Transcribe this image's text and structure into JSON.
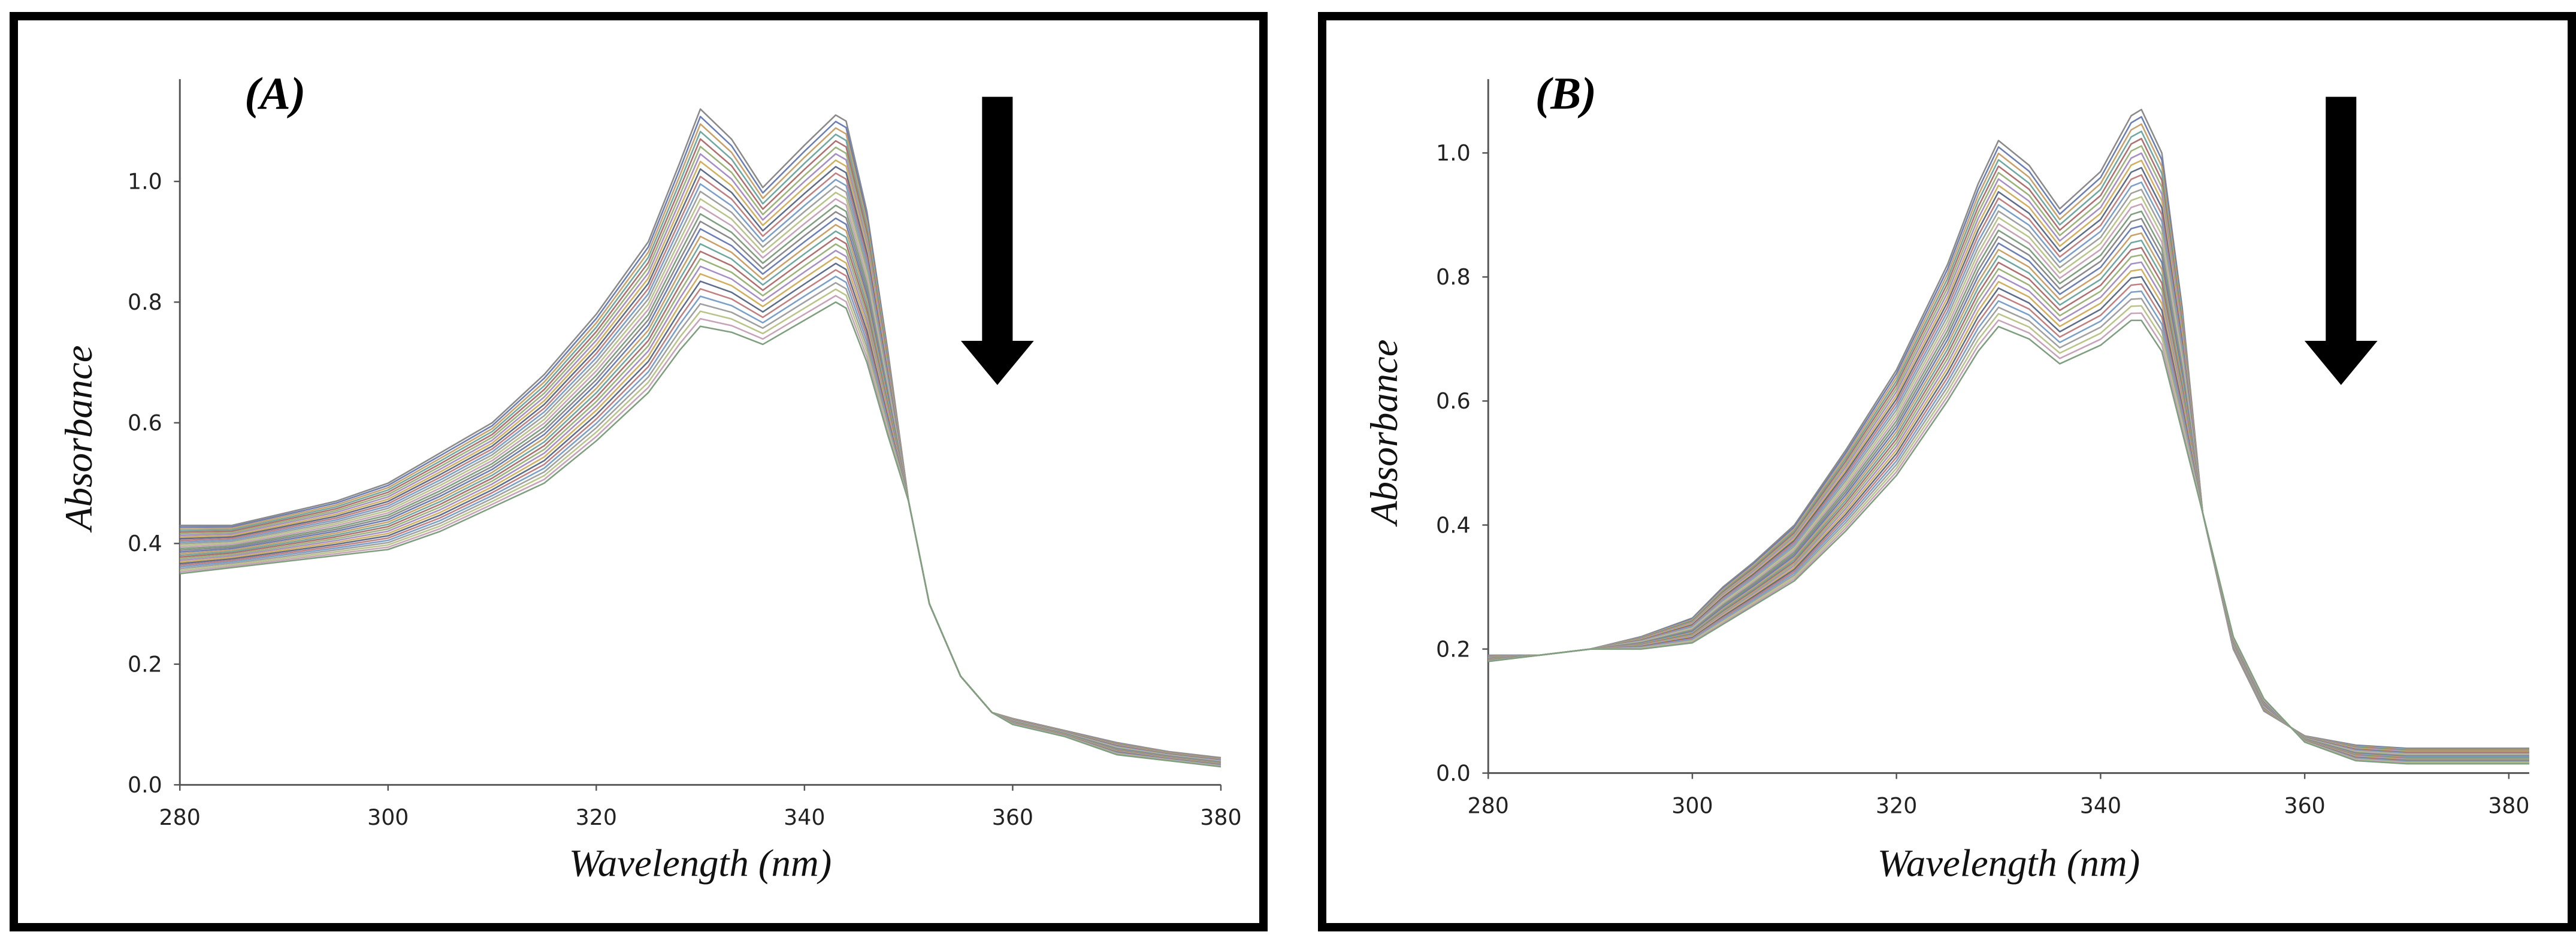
{
  "chart_data": [
    {
      "type": "line",
      "panel_label": "(A)",
      "xlabel": "Wavelength (nm)",
      "ylabel": "Absorbance",
      "xlim": [
        280,
        380
      ],
      "ylim": [
        0.0,
        1.15
      ],
      "x_ticks": [
        280,
        300,
        320,
        340,
        360,
        380
      ],
      "y_ticks": [
        0.0,
        0.2,
        0.4,
        0.6,
        0.8,
        1.0
      ],
      "x_tick_labels": [
        "280",
        "300",
        "320",
        "340",
        "360",
        "380"
      ],
      "y_tick_labels": [
        "0.0",
        "0.2",
        "0.4",
        "0.6",
        "0.8",
        "1.0"
      ],
      "arrow": "down",
      "series_count": 30,
      "x": [
        280,
        285,
        290,
        295,
        300,
        305,
        310,
        315,
        320,
        325,
        328,
        330,
        333,
        336,
        340,
        343,
        344,
        346,
        348,
        350,
        352,
        355,
        358,
        360,
        365,
        370,
        375,
        380
      ],
      "series_first": [
        0.43,
        0.43,
        0.45,
        0.47,
        0.5,
        0.55,
        0.6,
        0.68,
        0.78,
        0.9,
        1.03,
        1.12,
        1.07,
        0.99,
        1.06,
        1.11,
        1.1,
        0.95,
        0.72,
        0.47,
        0.3,
        0.18,
        0.12,
        0.11,
        0.09,
        0.07,
        0.055,
        0.045
      ],
      "series_last": [
        0.35,
        0.36,
        0.37,
        0.38,
        0.39,
        0.42,
        0.46,
        0.5,
        0.57,
        0.65,
        0.72,
        0.76,
        0.75,
        0.73,
        0.77,
        0.8,
        0.79,
        0.7,
        0.58,
        0.47,
        0.3,
        0.18,
        0.12,
        0.1,
        0.08,
        0.05,
        0.04,
        0.03
      ]
    },
    {
      "type": "line",
      "panel_label": "(B)",
      "xlabel": "Wavelength (nm)",
      "ylabel": "Absorbance",
      "xlim": [
        280,
        382
      ],
      "ylim": [
        0.0,
        1.1
      ],
      "x_ticks": [
        280,
        300,
        320,
        340,
        360,
        380
      ],
      "y_ticks": [
        0.0,
        0.2,
        0.4,
        0.6,
        0.8,
        1.0
      ],
      "x_tick_labels": [
        "280",
        "300",
        "320",
        "340",
        "360",
        "380"
      ],
      "y_tick_labels": [
        "0.0",
        "0.2",
        "0.4",
        "0.6",
        "0.8",
        "1.0"
      ],
      "arrow": "down",
      "series_count": 30,
      "x": [
        280,
        285,
        290,
        295,
        300,
        303,
        306,
        310,
        315,
        320,
        325,
        328,
        330,
        333,
        336,
        340,
        343,
        344,
        346,
        348,
        350,
        353,
        356,
        360,
        365,
        370,
        375,
        382
      ],
      "series_first": [
        0.19,
        0.19,
        0.2,
        0.22,
        0.25,
        0.3,
        0.34,
        0.4,
        0.52,
        0.65,
        0.82,
        0.95,
        1.02,
        0.98,
        0.91,
        0.97,
        1.06,
        1.07,
        1.0,
        0.75,
        0.42,
        0.2,
        0.1,
        0.06,
        0.045,
        0.04,
        0.04,
        0.04
      ],
      "series_last": [
        0.18,
        0.19,
        0.2,
        0.2,
        0.21,
        0.24,
        0.27,
        0.31,
        0.39,
        0.48,
        0.6,
        0.68,
        0.72,
        0.7,
        0.66,
        0.69,
        0.73,
        0.73,
        0.68,
        0.55,
        0.42,
        0.22,
        0.12,
        0.05,
        0.02,
        0.015,
        0.015,
        0.015
      ]
    }
  ],
  "colors": [
    "#8a8a8a",
    "#6b7fb5",
    "#c9a06a",
    "#6fa8a0",
    "#b07070",
    "#9bb37a",
    "#a58fc4",
    "#d0b060",
    "#5e6e8a",
    "#c08080",
    "#7aa0c8",
    "#a0a0a0",
    "#b8c48a",
    "#c7a3b8",
    "#7f9f7f"
  ]
}
